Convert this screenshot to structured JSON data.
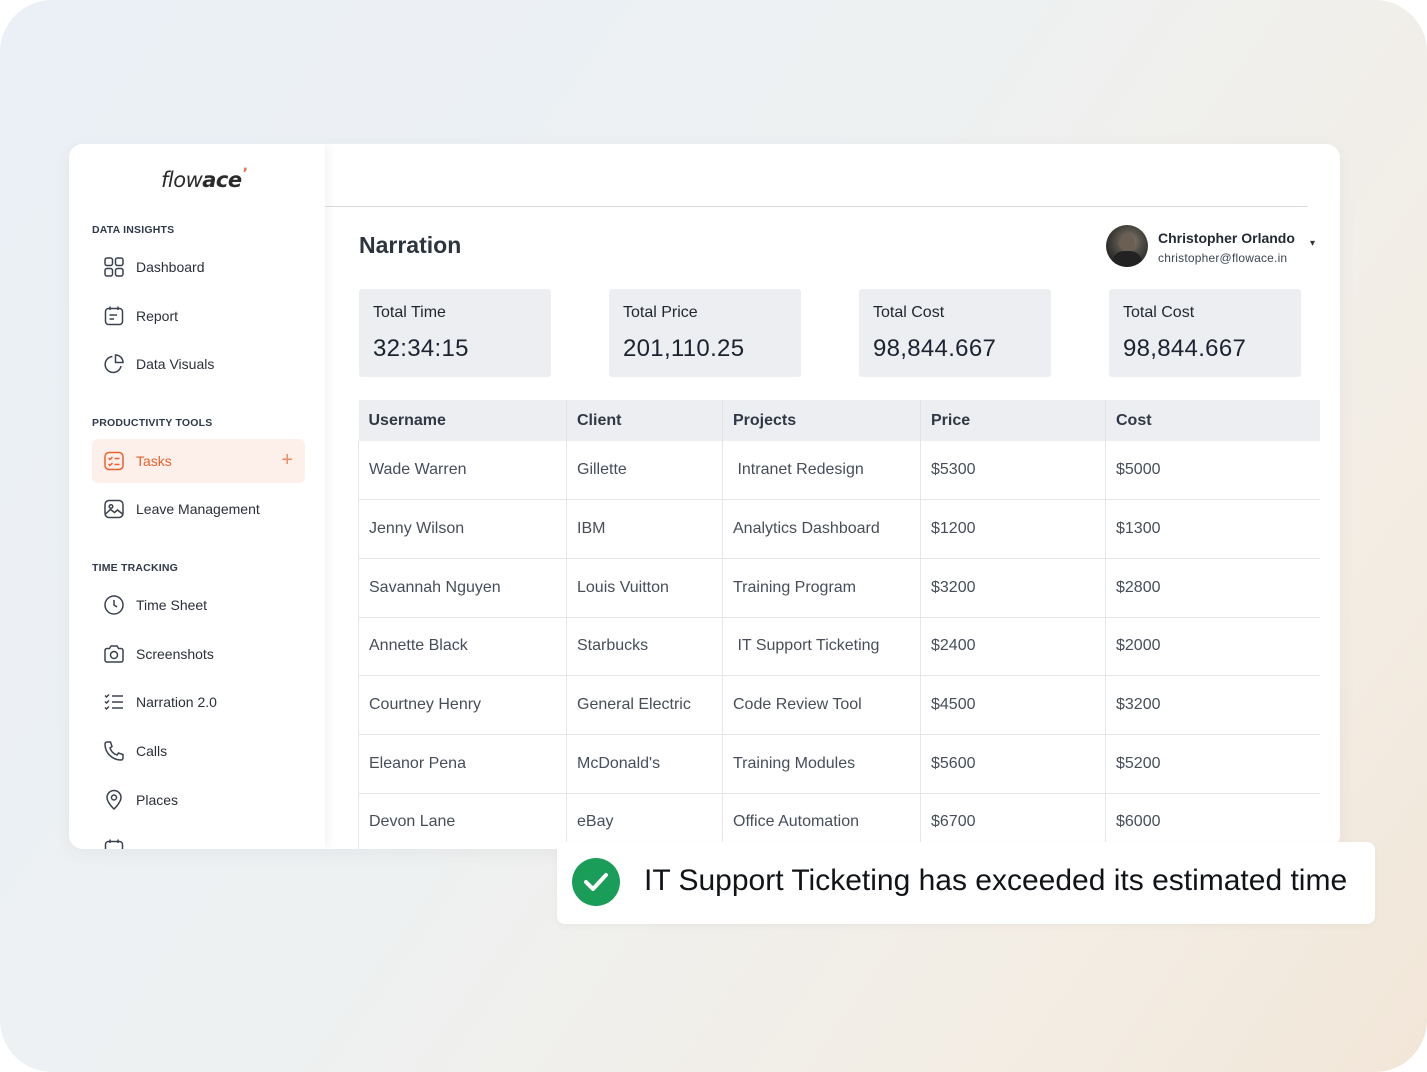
{
  "brand": {
    "logo_part1": "flow",
    "logo_part2": "ace",
    "logo_mark": "ʼ",
    "accent": "#e8612e"
  },
  "sidebar": {
    "sections": [
      {
        "title": "DATA INSIGHTS"
      },
      {
        "title": "PRODUCTIVITY TOOLS"
      },
      {
        "title": "TIME TRACKING"
      }
    ],
    "items": [
      {
        "label": "Dashboard",
        "icon": "grid-icon"
      },
      {
        "label": "Report",
        "icon": "report-icon"
      },
      {
        "label": "Data Visuals",
        "icon": "pie-chart-icon"
      },
      {
        "label": "Tasks",
        "icon": "tasks-icon",
        "active": true,
        "action": "+"
      },
      {
        "label": "Leave Management",
        "icon": "image-icon"
      },
      {
        "label": "Time Sheet",
        "icon": "clock-icon"
      },
      {
        "label": "Screenshots",
        "icon": "camera-icon"
      },
      {
        "label": "Narration 2.0",
        "icon": "checklist-icon"
      },
      {
        "label": "Calls",
        "icon": "phone-icon"
      },
      {
        "label": "Places",
        "icon": "location-pin-icon"
      }
    ]
  },
  "header": {
    "title": "Narration",
    "user": {
      "name": "Christopher Orlando",
      "email": "christopher@flowace.in",
      "caret": "▾"
    }
  },
  "stats": [
    {
      "label": "Total Time",
      "value": "32:34:15"
    },
    {
      "label": "Total Price",
      "value": "201,110.25"
    },
    {
      "label": "Total Cost",
      "value": "98,844.667"
    },
    {
      "label": "Total Cost",
      "value": "98,844.667"
    }
  ],
  "table": {
    "columns": [
      "Username",
      "Client",
      "Projects",
      "Price",
      "Cost"
    ],
    "rows": [
      [
        "Wade Warren",
        "Gillette",
        " Intranet Redesign",
        "$5300",
        "$5000"
      ],
      [
        "Jenny Wilson",
        "IBM",
        "Analytics Dashboard",
        "$1200",
        "$1300"
      ],
      [
        "Savannah Nguyen",
        "Louis Vuitton",
        "Training Program",
        "$3200",
        "$2800"
      ],
      [
        "Annette Black",
        "Starbucks",
        " IT Support Ticketing",
        "$2400",
        "$2000"
      ],
      [
        "Courtney Henry",
        "General Electric",
        "Code Review Tool",
        "$4500",
        "$3200"
      ],
      [
        "Eleanor Pena",
        "McDonald's",
        "Training Modules",
        "$5600",
        "$5200"
      ],
      [
        "Devon Lane",
        "eBay",
        "Office Automation",
        "$6700",
        "$6000"
      ]
    ]
  },
  "toast": {
    "message": "IT Support Ticketing has exceeded its estimated time",
    "icon": "check-circle-icon",
    "color": "#1a9d58"
  }
}
